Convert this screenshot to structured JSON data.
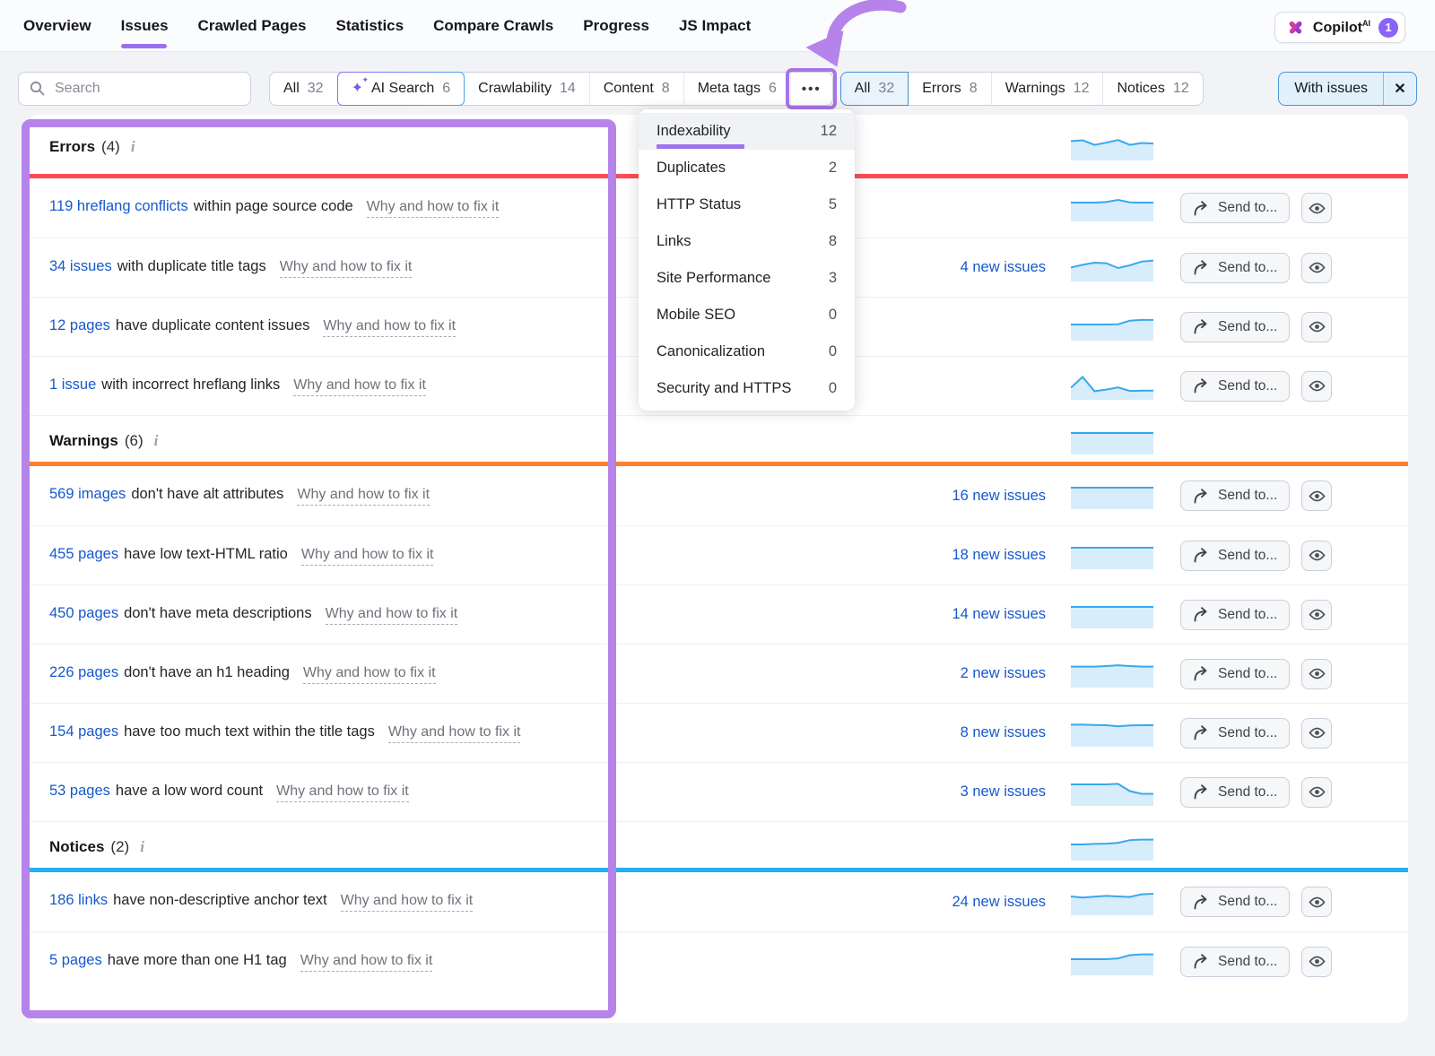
{
  "nav": {
    "items": [
      {
        "label": "Overview",
        "active": false
      },
      {
        "label": "Issues",
        "active": true
      },
      {
        "label": "Crawled Pages",
        "active": false
      },
      {
        "label": "Statistics",
        "active": false
      },
      {
        "label": "Compare Crawls",
        "active": false
      },
      {
        "label": "Progress",
        "active": false
      },
      {
        "label": "JS Impact",
        "active": false
      }
    ]
  },
  "copilot": {
    "label": "Copilot",
    "sup": "AI",
    "badge": "1"
  },
  "search": {
    "placeholder": "Search"
  },
  "category_tabs": {
    "items": [
      {
        "label": "All",
        "count": "32",
        "ai": false
      },
      {
        "label": "AI Search",
        "count": "6",
        "ai": true
      },
      {
        "label": "Crawlability",
        "count": "14",
        "ai": false
      },
      {
        "label": "Content",
        "count": "8",
        "ai": false
      },
      {
        "label": "Meta tags",
        "count": "6",
        "ai": false
      }
    ],
    "more_icon": "•••"
  },
  "severity_tabs": {
    "items": [
      {
        "label": "All",
        "count": "32",
        "selected": true
      },
      {
        "label": "Errors",
        "count": "8",
        "selected": false
      },
      {
        "label": "Warnings",
        "count": "12",
        "selected": false
      },
      {
        "label": "Notices",
        "count": "12",
        "selected": false
      }
    ]
  },
  "with_issues": {
    "label": "With issues",
    "close": "✕"
  },
  "dropdown": {
    "items": [
      {
        "label": "Indexability",
        "count": "12",
        "active": true
      },
      {
        "label": "Duplicates",
        "count": "2",
        "active": false
      },
      {
        "label": "HTTP Status",
        "count": "5",
        "active": false
      },
      {
        "label": "Links",
        "count": "8",
        "active": false
      },
      {
        "label": "Site Performance",
        "count": "3",
        "active": false
      },
      {
        "label": "Mobile SEO",
        "count": "0",
        "active": false
      },
      {
        "label": "Canonicalization",
        "count": "0",
        "active": false
      },
      {
        "label": "Security and HTTPS",
        "count": "0",
        "active": false
      }
    ]
  },
  "icons": {
    "info": "i",
    "sparkle": "✦"
  },
  "row_actions": {
    "send_label": "Send to..."
  },
  "colors": {
    "error_bar": "#fb4b57",
    "warning_bar": "#ff7f2b",
    "notice_bar": "#28aef2",
    "annotation_purple": "#b583ea",
    "link_blue": "#1659cb",
    "spark_line": "#38a8ee",
    "spark_fill": "#d7edfb"
  },
  "sections": [
    {
      "title": "Errors",
      "count": "(4)",
      "bar_color": "#fb4b57",
      "spark": [
        0.72,
        0.75,
        0.58,
        0.66,
        0.76,
        0.58,
        0.65,
        0.63
      ],
      "rows": [
        {
          "link": "119 hreflang conflicts",
          "text": "within page source code",
          "why": "Why and how to fix it",
          "new_issues": "",
          "spark": [
            0.7,
            0.7,
            0.7,
            0.72,
            0.8,
            0.71,
            0.7,
            0.7
          ]
        },
        {
          "link": "34 issues",
          "text": "with duplicate title tags",
          "why": "Why and how to fix it",
          "new_issues": "4 new issues",
          "spark": [
            0.52,
            0.62,
            0.7,
            0.68,
            0.5,
            0.6,
            0.74,
            0.78
          ]
        },
        {
          "link": "12 pages",
          "text": "have duplicate content issues",
          "why": "Why and how to fix it",
          "new_issues": "",
          "spark": [
            0.6,
            0.6,
            0.6,
            0.6,
            0.61,
            0.74,
            0.77,
            0.77
          ]
        },
        {
          "link": "1 issue",
          "text": "with incorrect hreflang links",
          "why": "Why and how to fix it",
          "new_issues": "",
          "spark": [
            0.45,
            0.85,
            0.32,
            0.38,
            0.46,
            0.33,
            0.34,
            0.34
          ]
        }
      ]
    },
    {
      "title": "Warnings",
      "count": "(6)",
      "bar_color": "#ff7f2b",
      "spark": [
        0.8,
        0.8,
        0.8,
        0.8,
        0.8,
        0.8,
        0.8,
        0.8
      ],
      "rows": [
        {
          "link": "569 images",
          "text": "don't have alt attributes",
          "why": "Why and how to fix it",
          "new_issues": "16 new issues",
          "spark": [
            0.8,
            0.8,
            0.8,
            0.8,
            0.8,
            0.8,
            0.8,
            0.8
          ]
        },
        {
          "link": "455 pages",
          "text": "have low text-HTML ratio",
          "why": "Why and how to fix it",
          "new_issues": "18 new issues",
          "spark": [
            0.8,
            0.8,
            0.8,
            0.8,
            0.8,
            0.8,
            0.8,
            0.8
          ]
        },
        {
          "link": "450 pages",
          "text": "don't have meta descriptions",
          "why": "Why and how to fix it",
          "new_issues": "14 new issues",
          "spark": [
            0.8,
            0.8,
            0.8,
            0.8,
            0.8,
            0.8,
            0.8,
            0.8
          ]
        },
        {
          "link": "226 pages",
          "text": "don't have an h1 heading",
          "why": "Why and how to fix it",
          "new_issues": "2 new issues",
          "spark": [
            0.78,
            0.78,
            0.78,
            0.8,
            0.83,
            0.8,
            0.78,
            0.78
          ]
        },
        {
          "link": "154 pages",
          "text": "have too much text within the title tags",
          "why": "Why and how to fix it",
          "new_issues": "8 new issues",
          "spark": [
            0.82,
            0.82,
            0.81,
            0.8,
            0.76,
            0.79,
            0.8,
            0.8
          ]
        },
        {
          "link": "53 pages",
          "text": "have a low word count",
          "why": "Why and how to fix it",
          "new_issues": "3 new issues",
          "spark": [
            0.8,
            0.8,
            0.8,
            0.8,
            0.82,
            0.55,
            0.45,
            0.45
          ]
        }
      ]
    },
    {
      "title": "Notices",
      "count": "(2)",
      "bar_color": "#28aef2",
      "spark": [
        0.6,
        0.6,
        0.62,
        0.63,
        0.66,
        0.76,
        0.78,
        0.78
      ],
      "rows": [
        {
          "link": "186 links",
          "text": "have non-descriptive anchor text",
          "why": "Why and how to fix it",
          "new_issues": "24 new issues",
          "spark": [
            0.7,
            0.66,
            0.69,
            0.72,
            0.7,
            0.68,
            0.78,
            0.8
          ]
        },
        {
          "link": "5 pages",
          "text": "have more than one H1 tag",
          "why": "Why and how to fix it",
          "new_issues": "",
          "spark": [
            0.6,
            0.6,
            0.6,
            0.6,
            0.63,
            0.75,
            0.78,
            0.78
          ]
        }
      ]
    }
  ]
}
